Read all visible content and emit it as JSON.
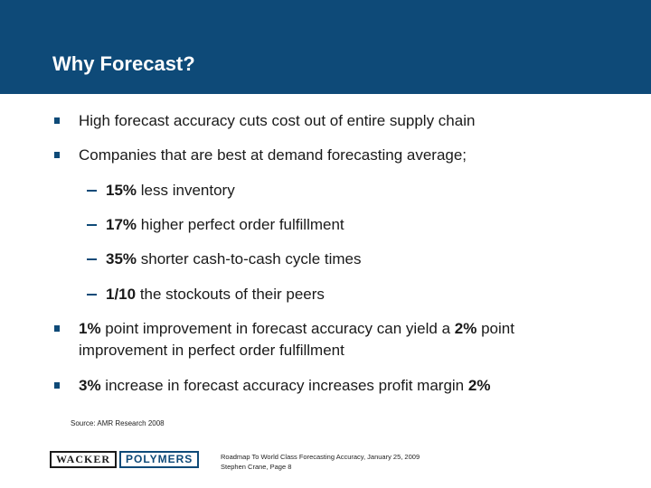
{
  "slide": {
    "title": "Why Forecast?",
    "bullets": [
      {
        "text": "High forecast accuracy cuts cost out of entire supply chain"
      },
      {
        "text": "Companies that are best at demand forecasting average;"
      }
    ],
    "sub_bullets": [
      {
        "strong": "15%",
        "text": " less inventory"
      },
      {
        "strong": "17%",
        "text": " higher perfect order fulfillment"
      },
      {
        "strong": "35%",
        "text": " shorter cash-to-cash cycle times"
      },
      {
        "strong": "1/10",
        "text": " the stockouts of their peers"
      }
    ],
    "bullet3": {
      "strong1": "1%",
      "text1": " point improvement in forecast accuracy can yield a ",
      "strong2": "2%",
      "text2": " point improvement in perfect order fulfillment"
    },
    "bullet4": {
      "strong1": "3%",
      "text1": " increase in forecast accuracy increases profit margin ",
      "strong2": "2%"
    },
    "source": "Source: AMR Research 2008"
  },
  "footer": {
    "logo_left": "WACKER",
    "logo_right": "POLYMERS",
    "line1": "Roadmap To World Class Forecasting Accuracy, January 25, 2009",
    "line2": "Stephen Crane, Page 8"
  },
  "colors": {
    "brand": "#0e4a78"
  },
  "icons": {
    "bullet": "square-bullet-icon",
    "sub_bullet": "dash-bullet-icon"
  }
}
